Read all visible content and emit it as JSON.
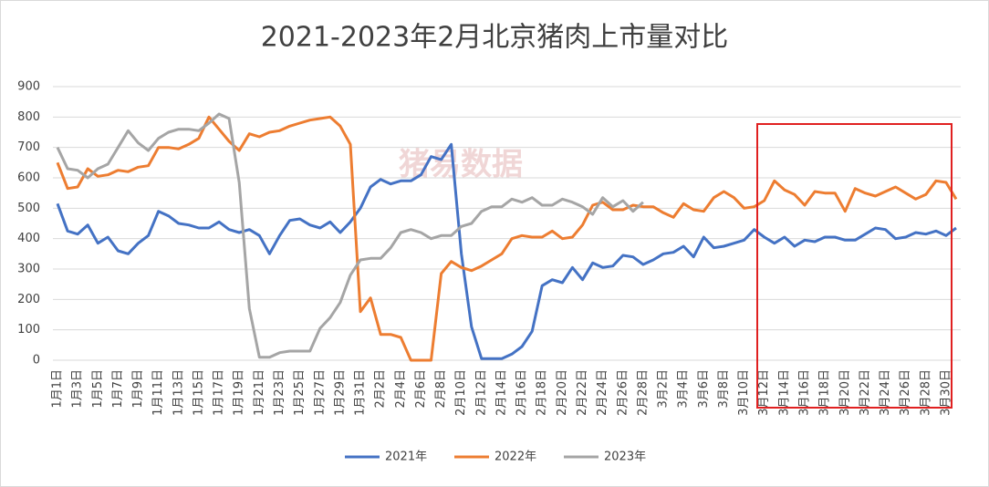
{
  "chart_data": {
    "type": "line",
    "title": "2021-2023年2月北京猪肉上市量对比",
    "watermark": "猪易数据",
    "categories": [
      "1月1日",
      null,
      "1月3日",
      null,
      "1月5日",
      null,
      "1月7日",
      null,
      "1月9日",
      null,
      "1月11日",
      null,
      "1月13日",
      null,
      "1月15日",
      null,
      "1月17日",
      null,
      "1月19日",
      null,
      "1月21日",
      null,
      "1月23日",
      null,
      "1月25日",
      null,
      "1月27日",
      null,
      "1月29日",
      null,
      "1月31日",
      null,
      "2月2日",
      null,
      "2月4日",
      null,
      "2月6日",
      null,
      "2月8日",
      null,
      "2月10日",
      null,
      "2月12日",
      null,
      "2月14日",
      null,
      "2月16日",
      null,
      "2月18日",
      null,
      "2月20日",
      null,
      "2月22日",
      null,
      "2月24日",
      null,
      "2月26日",
      null,
      "2月28日",
      null,
      "3月2日",
      null,
      "3月4日",
      null,
      "3月6日",
      null,
      "3月8日",
      null,
      "3月10日",
      null,
      "3月12日",
      null,
      "3月14日",
      null,
      "3月16日",
      null,
      "3月18日",
      null,
      "3月20日",
      null,
      "3月22日",
      null,
      "3月24日",
      null,
      "3月26日",
      null,
      "3月28日",
      null,
      "3月30日",
      null
    ],
    "series": [
      {
        "name": "2021年",
        "color": "#4472c4",
        "values": [
          515,
          425,
          415,
          445,
          385,
          405,
          360,
          350,
          385,
          410,
          490,
          475,
          450,
          445,
          435,
          435,
          455,
          430,
          420,
          430,
          410,
          350,
          410,
          460,
          465,
          445,
          435,
          455,
          420,
          455,
          500,
          570,
          595,
          580,
          590,
          590,
          610,
          670,
          660,
          710,
          350,
          110,
          5,
          5,
          5,
          20,
          45,
          95,
          245,
          265,
          255,
          305,
          265,
          320,
          305,
          310,
          345,
          340,
          315,
          330,
          350,
          355,
          375,
          340,
          405,
          370,
          375,
          385,
          395,
          430,
          405,
          385,
          405,
          375,
          395,
          390,
          405,
          405,
          395,
          395,
          415,
          435,
          430,
          400,
          405,
          420,
          415,
          425,
          410,
          435
        ]
      },
      {
        "name": "2022年",
        "color": "#ed7d31",
        "values": [
          650,
          565,
          570,
          630,
          605,
          610,
          625,
          620,
          635,
          640,
          700,
          700,
          695,
          710,
          730,
          800,
          760,
          720,
          690,
          745,
          735,
          750,
          755,
          770,
          780,
          790,
          795,
          800,
          770,
          710,
          160,
          205,
          85,
          85,
          75,
          0,
          0,
          0,
          285,
          325,
          305,
          295,
          310,
          330,
          350,
          400,
          410,
          405,
          405,
          425,
          400,
          405,
          445,
          510,
          520,
          495,
          495,
          510,
          505,
          505,
          485,
          470,
          515,
          495,
          490,
          535,
          555,
          535,
          500,
          505,
          525,
          590,
          560,
          545,
          510,
          555,
          550,
          550,
          490,
          565,
          550,
          540,
          555,
          570,
          550,
          530,
          545,
          590,
          585,
          530
        ]
      },
      {
        "name": "2023年",
        "color": "#a5a5a5",
        "values": [
          700,
          630,
          625,
          600,
          630,
          645,
          700,
          755,
          715,
          690,
          730,
          750,
          760,
          760,
          755,
          780,
          810,
          795,
          585,
          170,
          10,
          10,
          25,
          30,
          30,
          30,
          105,
          140,
          190,
          280,
          330,
          335,
          335,
          370,
          420,
          430,
          420,
          400,
          410,
          410,
          440,
          450,
          490,
          505,
          505,
          530,
          520,
          535,
          510,
          510,
          530,
          520,
          505,
          480,
          535,
          505,
          525,
          490,
          520,
          null,
          null,
          null,
          null,
          null,
          null,
          null,
          null,
          null,
          null,
          null,
          null,
          null,
          null,
          null,
          null,
          null,
          null,
          null,
          null,
          null,
          null,
          null,
          null,
          null,
          null,
          null,
          null,
          null,
          null,
          null
        ]
      }
    ],
    "ylim": [
      0,
      900
    ],
    "yticks": [
      0,
      100,
      200,
      300,
      400,
      500,
      600,
      700,
      800,
      900
    ],
    "grid": true,
    "legend": "bottom"
  }
}
